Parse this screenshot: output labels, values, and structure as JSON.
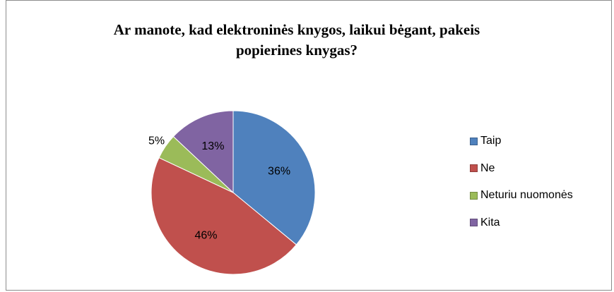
{
  "chart_data": {
    "type": "pie",
    "title_lines": [
      "Ar manote, kad elektroninės knygos, laikui bėgant, pakeis",
      "popierines knygas?"
    ],
    "categories": [
      "Taip",
      "Ne",
      "Neturiu nuomonės",
      "Kita"
    ],
    "values": [
      36,
      46,
      5,
      13
    ],
    "labels": [
      "36%",
      "46%",
      "5%",
      "13%"
    ],
    "colors": [
      "#4f81bd",
      "#c0504d",
      "#9bbb59",
      "#8064a2"
    ],
    "legend_position": "right"
  }
}
